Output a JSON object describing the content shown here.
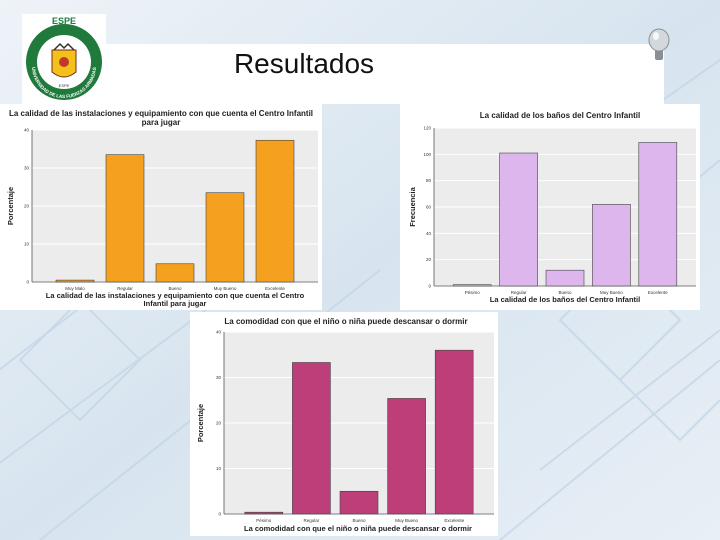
{
  "slide": {
    "title": "Resultados"
  },
  "logo": {
    "text_top": "ESPE",
    "text_ring": "UNIVERSIDAD DE LAS FUERZAS ARMADAS",
    "text_center": "ESPE"
  },
  "colors": {
    "orange": "#f5a01e",
    "lavender": "#ddb6ee",
    "magenta": "#bc3f7a",
    "bg_blue": "#dfe9f2"
  },
  "chart_data": [
    {
      "type": "bar",
      "title_lines": [
        "La calidad de las instalaciones y equipamiento con que cuenta el Centro Infantil",
        "para jugar"
      ],
      "categories": [
        "Muy Malo",
        "Regular",
        "Bueno",
        "Muy Bueno",
        "Excelente"
      ],
      "values": [
        0.5,
        33.5,
        4.8,
        23.5,
        37.3
      ],
      "xlabel_lines": [
        "La calidad de las instalaciones y equipamiento con que cuenta el Centro",
        "Infantil para jugar"
      ],
      "ylabel": "Porcentaje",
      "ylim": [
        0,
        40
      ],
      "yticks": [
        0,
        10,
        20,
        30,
        40
      ],
      "ytick_labels": [
        "0",
        "10",
        "20",
        "30",
        "40"
      ],
      "color": "#f5a01e"
    },
    {
      "type": "bar",
      "title_lines": [
        "La calidad de los baños del Centro Infantil"
      ],
      "categories": [
        "Pésimo",
        "Regular",
        "Bueno",
        "Muy Bueno",
        "Excelente"
      ],
      "values": [
        1,
        101,
        12,
        62,
        109
      ],
      "xlabel_lines": [
        "La calidad de los baños del Centro Infantil"
      ],
      "ylabel": "Frecuencia",
      "ylim": [
        0,
        120
      ],
      "yticks": [
        0,
        20,
        40,
        60,
        80,
        100,
        120
      ],
      "ytick_labels": [
        "0",
        "20",
        "40",
        "60",
        "80",
        "100",
        "120"
      ],
      "color": "#ddb6ee"
    },
    {
      "type": "bar",
      "title_lines": [
        "La comodidad con que el niño o niña puede descansar o dormir"
      ],
      "categories": [
        "Pésimo",
        "Regular",
        "Bueno",
        "Muy Bueno",
        "Excelente"
      ],
      "values": [
        0.4,
        33.3,
        5,
        25.4,
        36
      ],
      "xlabel_lines": [
        "La comodidad con que el niño o niña puede descansar o dormir"
      ],
      "ylabel": "Porcentaje",
      "ylim": [
        0,
        40
      ],
      "yticks": [
        0,
        10,
        20,
        30,
        40
      ],
      "ytick_labels": [
        "0",
        "10",
        "20",
        "30",
        "40"
      ],
      "color": "#bc3f7a"
    }
  ]
}
